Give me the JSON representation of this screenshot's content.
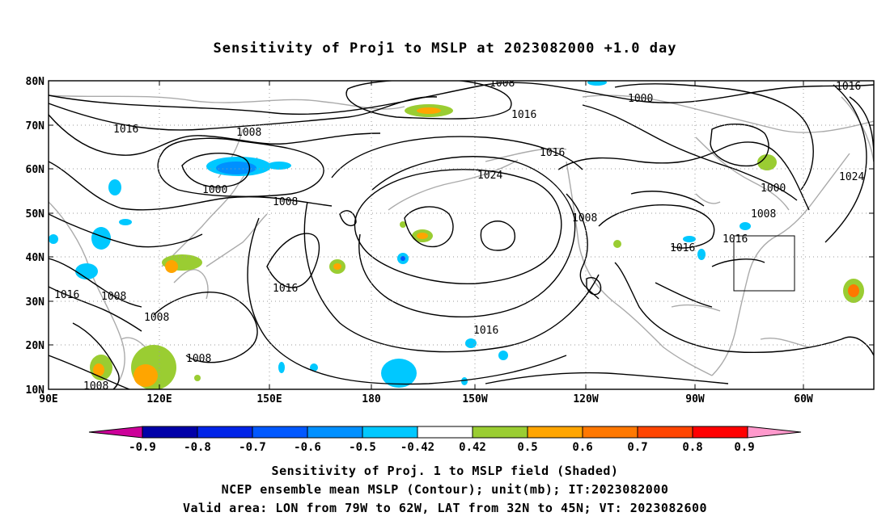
{
  "title": "Sensitivity of Proj1 to MSLP at 2023082000 +1.0 day",
  "lat_labels": [
    "80N",
    "70N",
    "60N",
    "50N",
    "40N",
    "30N",
    "20N",
    "10N"
  ],
  "lon_labels": [
    "90E",
    "120E",
    "150E",
    "180",
    "150W",
    "120W",
    "90W",
    "60W"
  ],
  "contour_labels": [
    {
      "text": "1008"
    },
    {
      "text": "1016"
    },
    {
      "text": "1000"
    },
    {
      "text": "1016"
    },
    {
      "text": "1016"
    },
    {
      "text": "1008"
    },
    {
      "text": "1000"
    },
    {
      "text": "1008"
    },
    {
      "text": "1024"
    },
    {
      "text": "1016"
    },
    {
      "text": "1008"
    },
    {
      "text": "1000"
    },
    {
      "text": "1008"
    },
    {
      "text": "1016"
    },
    {
      "text": "1016"
    },
    {
      "text": "1024"
    },
    {
      "text": "1016"
    },
    {
      "text": "1008"
    },
    {
      "text": "1008"
    },
    {
      "text": "1016"
    },
    {
      "text": "1008"
    },
    {
      "text": "1008"
    }
  ],
  "colorbar": {
    "labels": [
      "-0.9",
      "-0.8",
      "-0.7",
      "-0.6",
      "-0.5",
      "-0.42",
      "0.42",
      "0.5",
      "0.6",
      "0.7",
      "0.8",
      "0.9"
    ],
    "colors": [
      "#0000a8",
      "#0024e8",
      "#0058ff",
      "#0090ff",
      "#00c8ff",
      "#ffffff",
      "#9acd32",
      "#ffa500",
      "#ff7800",
      "#ff4500",
      "#ff0000"
    ],
    "low_arrow_color": "#cc0099",
    "high_arrow_color": "#ff99cc"
  },
  "captions": {
    "line1": "Sensitivity of Proj. 1 to MSLP field (Shaded)",
    "line2": "NCEP ensemble mean MSLP (Contour); unit(mb); IT:2023082000",
    "line3": "Valid area: LON from 79W to 62W, LAT from 32N to 45N; VT: 2023082600"
  }
}
